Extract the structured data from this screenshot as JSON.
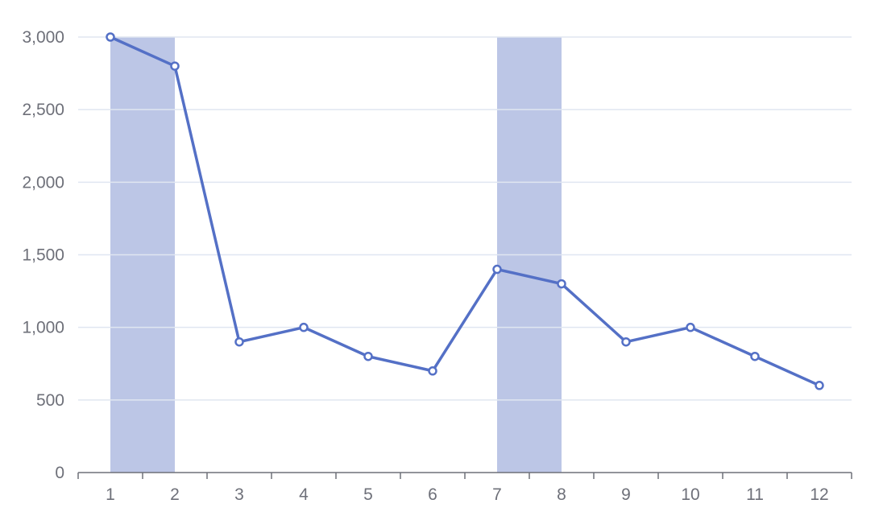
{
  "chart_data": {
    "type": "line",
    "title": "",
    "xlabel": "",
    "ylabel": "",
    "categories": [
      "1",
      "2",
      "3",
      "4",
      "5",
      "6",
      "7",
      "8",
      "9",
      "10",
      "11",
      "12"
    ],
    "series": [
      {
        "values": [
          3000,
          2800,
          900,
          1000,
          800,
          700,
          1400,
          1300,
          900,
          1000,
          800,
          600
        ]
      }
    ],
    "highlight_bands": [
      {
        "from": "1",
        "to": "2"
      },
      {
        "from": "7",
        "to": "8"
      }
    ],
    "ylim": [
      0,
      3000
    ],
    "y_ticks": [
      0,
      500,
      1000,
      1500,
      2000,
      2500,
      3000
    ],
    "y_tick_labels": [
      "0",
      "500",
      "1,000",
      "1,500",
      "2,000",
      "2,500",
      "3,000"
    ],
    "grid": true,
    "legend": "none",
    "colors": {
      "line": "#5470c6",
      "band": "#bcc6e6",
      "grid": "#e0e6f1",
      "axis": "#6e7079",
      "marker_fill": "#ffffff"
    }
  }
}
